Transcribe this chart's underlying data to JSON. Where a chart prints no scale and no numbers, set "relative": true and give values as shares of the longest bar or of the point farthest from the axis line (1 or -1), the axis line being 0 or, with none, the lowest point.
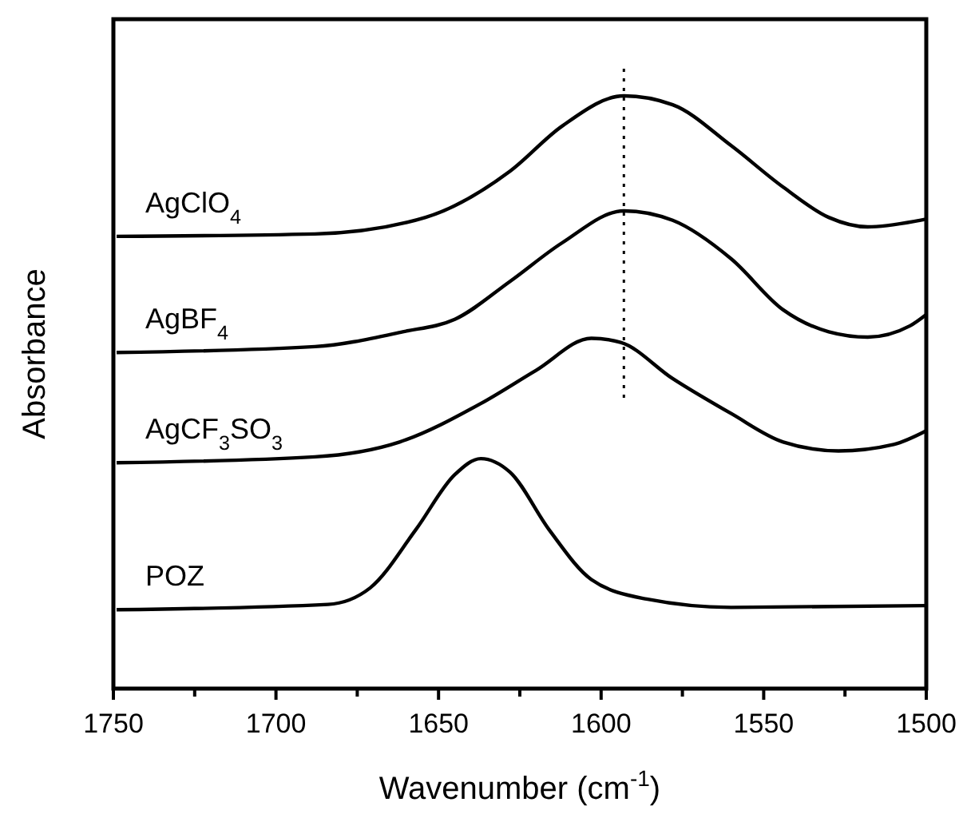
{
  "chart_data": {
    "type": "line",
    "relative": true,
    "xlabel": "Wavenumber (cm$^{-1}$)",
    "ylabel": "Absorbance",
    "xlim": [
      1750,
      1500
    ],
    "xticks": [
      1750,
      {
        "value": 1725,
        "label": null
      },
      1700,
      {
        "value": 1675,
        "label": null
      },
      1650,
      {
        "value": 1625,
        "label": null
      },
      1600,
      {
        "value": 1575,
        "label": null
      },
      1550,
      {
        "value": 1525,
        "label": null
      },
      1500
    ],
    "tick_labels": "x",
    "grid": false,
    "legend": false,
    "marker": "none",
    "line_style": "solid",
    "ref_lines": [
      {
        "axis": "x",
        "value": 1593,
        "line_style": "dotted",
        "color": "#000000"
      }
    ],
    "series": [
      {
        "name": "AgClO$_{4}$",
        "color": "#000000",
        "x": [
          1749,
          1688,
          1654,
          1628,
          1612,
          1593,
          1578,
          1560,
          1544,
          1530,
          1518,
          1502,
          1500
        ],
        "values": [
          0.763,
          0.767,
          0.795,
          0.873,
          0.949,
          1.0,
          0.985,
          0.916,
          0.846,
          0.795,
          0.779,
          0.79,
          0.792
        ]
      },
      {
        "name": "AgBF$_{4}$",
        "color": "#000000",
        "x": [
          1749,
          1688,
          1661,
          1645,
          1628,
          1612,
          1593,
          1578,
          1560,
          1544,
          1530,
          1518,
          1505,
          1500
        ],
        "values": [
          0.567,
          0.577,
          0.602,
          0.623,
          0.687,
          0.752,
          0.806,
          0.79,
          0.725,
          0.639,
          0.602,
          0.593,
          0.612,
          0.631
        ]
      },
      {
        "name": "AgCF$_{3}$SO$_{3}$",
        "color": "#000000",
        "x": [
          1749,
          1688,
          1662,
          1637,
          1620,
          1603,
          1594,
          1578,
          1560,
          1544,
          1527,
          1510,
          1500
        ],
        "values": [
          0.381,
          0.391,
          0.416,
          0.481,
          0.537,
          0.591,
          0.584,
          0.523,
          0.464,
          0.416,
          0.401,
          0.412,
          0.435
        ]
      },
      {
        "name": "POZ",
        "color": "#000000",
        "x": [
          1749,
          1684,
          1671,
          1657,
          1645,
          1637,
          1628,
          1616,
          1603,
          1586,
          1560,
          1500
        ],
        "values": [
          0.133,
          0.142,
          0.17,
          0.268,
          0.361,
          0.388,
          0.365,
          0.268,
          0.184,
          0.151,
          0.137,
          0.14
        ]
      }
    ]
  }
}
